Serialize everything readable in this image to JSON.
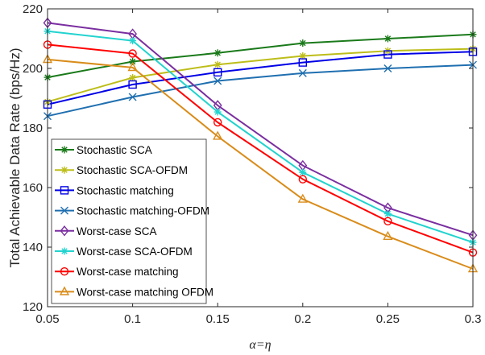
{
  "chart_data": {
    "type": "line",
    "title": "",
    "xlabel": "α=η",
    "ylabel": "Total Achievable Data Rate (bps/Hz)",
    "x": [
      0.05,
      0.1,
      0.15,
      0.2,
      0.25,
      0.3
    ],
    "x_tick_labels": [
      "0.05",
      "0.1",
      "0.15",
      "0.2",
      "0.25",
      "0.3"
    ],
    "xlim": [
      0.05,
      0.3
    ],
    "ylim": [
      120,
      220
    ],
    "y_ticks": [
      120,
      140,
      160,
      180,
      200,
      220
    ],
    "grid": false,
    "legend_position": "lower-left",
    "series": [
      {
        "name": "Stochastic SCA",
        "color": "#1a7a1a",
        "marker": "star",
        "values": [
          197.0,
          202.3,
          205.2,
          208.5,
          210.0,
          211.4
        ]
      },
      {
        "name": "Stochastic SCA-OFDM",
        "color": "#bdbd1a",
        "marker": "star",
        "values": [
          188.8,
          196.9,
          201.3,
          204.2,
          205.9,
          206.6
        ]
      },
      {
        "name": "Stochastic matching",
        "color": "#0000e6",
        "marker": "square",
        "values": [
          187.9,
          194.6,
          198.7,
          202.0,
          204.7,
          205.6
        ]
      },
      {
        "name": "Stochastic matching-OFDM",
        "color": "#1f6fb0",
        "marker": "x",
        "values": [
          184.0,
          190.4,
          195.8,
          198.4,
          200.0,
          201.2
        ]
      },
      {
        "name": "Worst-case SCA",
        "color": "#7a2ea0",
        "marker": "diamond",
        "values": [
          215.3,
          211.6,
          187.6,
          167.4,
          153.2,
          144.0
        ]
      },
      {
        "name": "Worst-case SCA-OFDM",
        "color": "#22d3cf",
        "marker": "star",
        "values": [
          212.5,
          209.3,
          185.4,
          165.1,
          151.2,
          141.6
        ]
      },
      {
        "name": "Worst-case matching",
        "color": "#ff0000",
        "marker": "circle",
        "values": [
          208.0,
          205.0,
          181.9,
          162.8,
          148.7,
          138.2
        ]
      },
      {
        "name": "Worst-case matching OFDM",
        "color": "#d98c1a",
        "marker": "triangle",
        "values": [
          203.0,
          200.3,
          177.2,
          156.1,
          143.6,
          132.7
        ]
      }
    ]
  }
}
